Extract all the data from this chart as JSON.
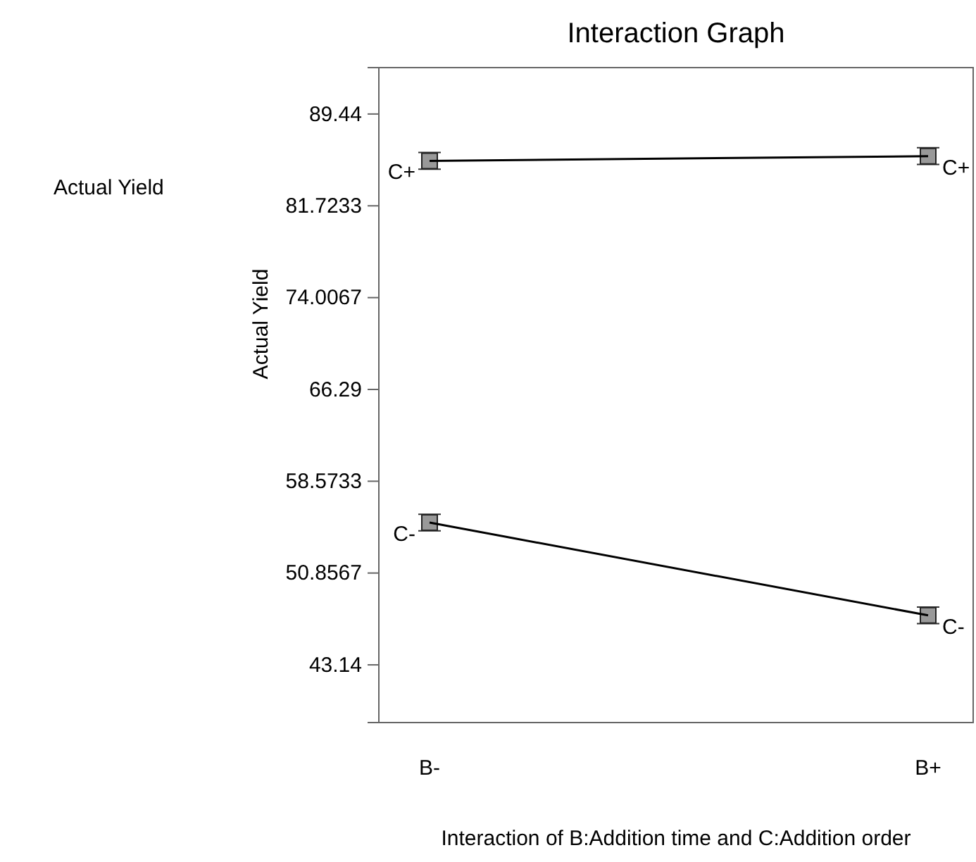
{
  "chart_data": {
    "type": "line",
    "title": "Interaction Graph",
    "ylabel": "Actual Yield",
    "xlabel": "Interaction of B:Addition time and C:Addition order",
    "annotations": [
      "Actual Yield"
    ],
    "categories": [
      "B-",
      "B+"
    ],
    "series": [
      {
        "name": "C+",
        "color": "#000000",
        "values": [
          85.5,
          85.9
        ],
        "errors": [
          0.7,
          0.7
        ]
      },
      {
        "name": "C-",
        "color": "#000000",
        "values": [
          55.1,
          47.3
        ],
        "errors": [
          0.7,
          0.7
        ]
      }
    ],
    "ylim": [
      38.29,
      93.34
    ],
    "yticks": [
      43.14,
      50.8567,
      58.5733,
      66.29,
      74.0067,
      81.7233,
      89.44
    ],
    "marker": "square",
    "legend": false,
    "grid": false
  }
}
